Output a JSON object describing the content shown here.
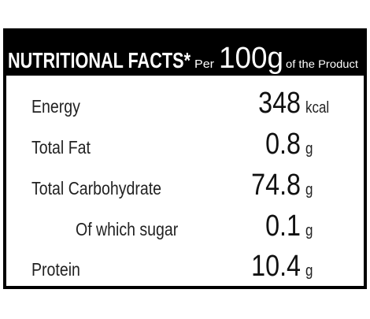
{
  "header": {
    "title": "NUTRITIONAL FACTS*",
    "per": "Per",
    "amount": "100g",
    "suffix": "of the Product"
  },
  "rows": [
    {
      "label": "Energy",
      "value": "348",
      "unit": "kcal"
    },
    {
      "label": "Total Fat",
      "value": "0.8",
      "unit": "g"
    },
    {
      "label": "Total Carbohydrate",
      "value": "74.8",
      "unit": "g"
    },
    {
      "label": "Of which sugar",
      "value": "0.1",
      "unit": "g"
    },
    {
      "label": "Protein",
      "value": "10.4",
      "unit": "g"
    }
  ]
}
